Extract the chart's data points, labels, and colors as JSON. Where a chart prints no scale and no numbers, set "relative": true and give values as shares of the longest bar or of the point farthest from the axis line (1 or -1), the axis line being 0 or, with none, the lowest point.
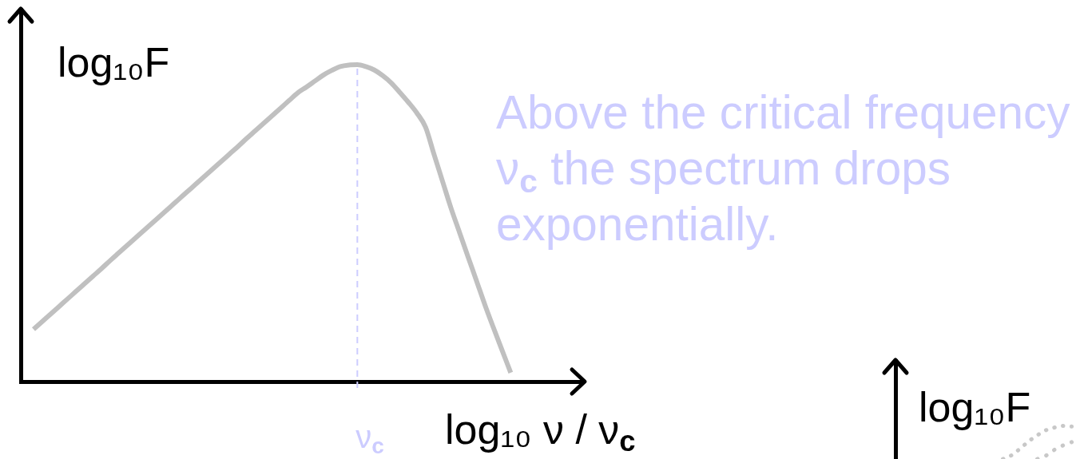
{
  "chart_data": [
    {
      "type": "line",
      "xlabel": "log₁₀ ν / ν$_{c}$",
      "ylabel": "log₁₀F",
      "relative": true,
      "categories": [
        null,
        null,
        null,
        null,
        null,
        null,
        null,
        null,
        null,
        null,
        null,
        null,
        null,
        null,
        null,
        null,
        null,
        null,
        null,
        null,
        null,
        null,
        null,
        null,
        null,
        null,
        null,
        null,
        null,
        null,
        null,
        null,
        null,
        null,
        null,
        null,
        null,
        null,
        null,
        null,
        null,
        null,
        null,
        null,
        null,
        null,
        null,
        null,
        null,
        null,
        null,
        null,
        null,
        null,
        null,
        null,
        null,
        null,
        null,
        null,
        null,
        null,
        null,
        null,
        null,
        null
      ],
      "values": [
        null,
        0.165,
        0.189,
        0.213,
        0.237,
        0.261,
        0.285,
        0.309,
        0.333,
        0.357,
        0.382,
        0.406,
        0.43,
        0.454,
        0.478,
        0.502,
        0.526,
        0.55,
        0.574,
        0.598,
        0.622,
        0.646,
        0.67,
        0.694,
        0.718,
        0.742,
        0.767,
        0.791,
        0.815,
        0.839,
        0.863,
        0.887,
        0.911,
        0.929,
        0.948,
        0.967,
        0.982,
        0.994,
        0.999,
        1,
        0.994,
        0.983,
        0.965,
        0.942,
        0.912,
        0.881,
        0.847,
        0.803,
        0.717,
        0.632,
        0.547,
        0.47,
        0.393,
        0.317,
        0.24,
        0.168,
        0.098,
        0.028,
        null,
        null,
        null,
        null,
        null,
        null,
        null,
        null
      ],
      "color": "#c0c0c0",
      "annotations": [
        "Above the critical frequency ν$_{c}$ the spectrum drops exponentially.",
        "ν$_{c}$"
      ]
    },
    {
      "type": "line",
      "ylabel": "log₁₀F",
      "relative": true,
      "line_style": "dotted",
      "categories": [
        null,
        null,
        null,
        null,
        null,
        null,
        null,
        null,
        null,
        null,
        null,
        null,
        null,
        null,
        null,
        null,
        null,
        null,
        null,
        null,
        null
      ],
      "series": [
        {
          "color": "#c8c8c8",
          "values": [
            null,
            null,
            null,
            null,
            null,
            null,
            null,
            null,
            null,
            null,
            null,
            null,
            0,
            0.11,
            0.31,
            0.54,
            0.72,
            0.87,
            0.95,
            1,
            0.98
          ]
        },
        {
          "color": "#c8c8c8",
          "values": [
            null,
            null,
            null,
            null,
            null,
            null,
            null,
            null,
            null,
            null,
            null,
            null,
            null,
            null,
            null,
            null,
            0,
            0.1,
            0.28,
            0.41,
            0.51
          ]
        }
      ]
    }
  ]
}
